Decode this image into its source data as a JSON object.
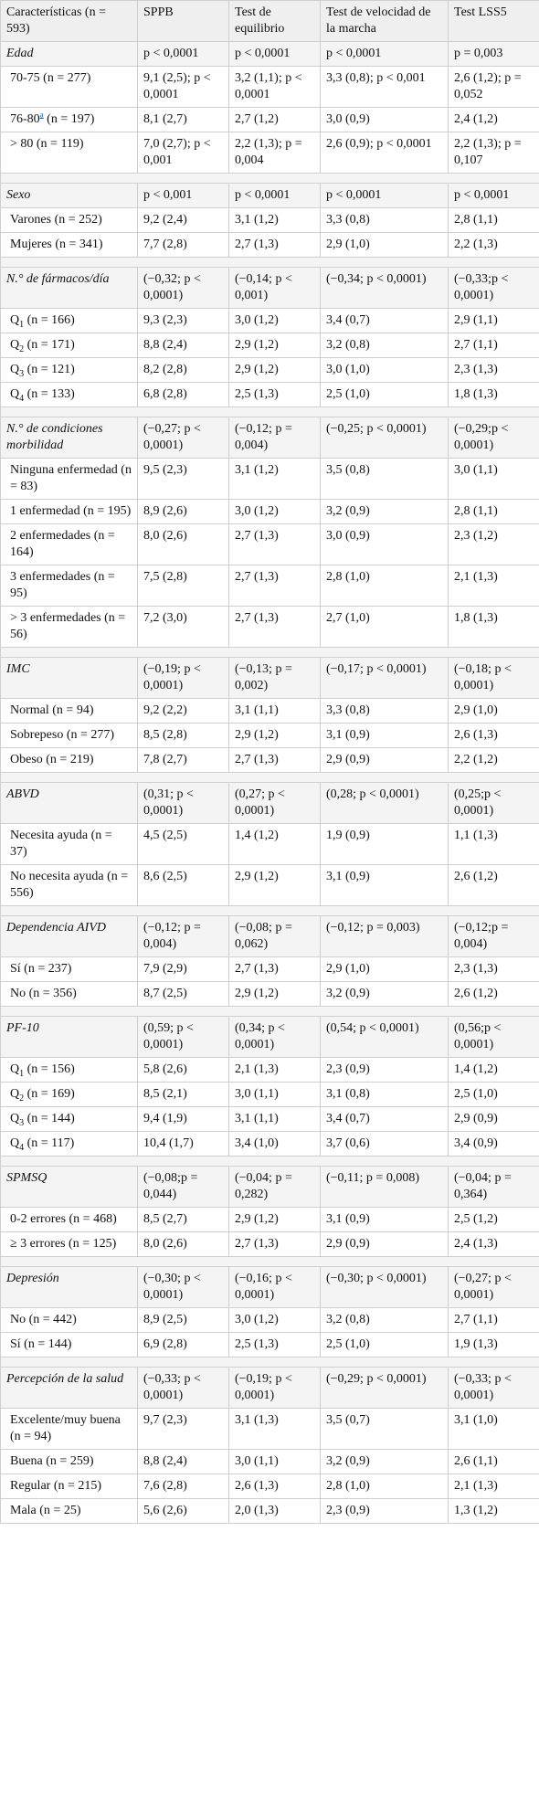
{
  "table": {
    "headers": [
      "Características (n = 593)",
      "SPPB",
      "Test de equilibrio",
      "Test de velocidad de la marcha",
      "Test LSS5"
    ],
    "groups": [
      {
        "label": "Edad",
        "values": [
          "p < 0,0001",
          "p < 0,0001",
          "p < 0,0001",
          "p = 0,003"
        ],
        "rows": [
          {
            "label": "70-75 (n = 277)",
            "values": [
              "9,1 (2,5); p < 0,0001",
              "3,2 (1,1); p < 0,0001",
              "3,3 (0,8); p < 0,001",
              "2,6 (1,2); p = 0,052"
            ]
          },
          {
            "label_pre": "76-80",
            "label_sup": "a",
            "label_post": " (n = 197)",
            "values": [
              "8,1 (2,7)",
              "2,7 (1,2)",
              "3,0 (0,9)",
              "2,4 (1,2)"
            ]
          },
          {
            "label": "> 80 (n = 119)",
            "values": [
              "7,0 (2,7); p < 0,001",
              "2,2 (1,3); p = 0,004",
              "2,6 (0,9); p < 0,0001",
              "2,2 (1,3); p = 0,107"
            ]
          }
        ]
      },
      {
        "label": "Sexo",
        "values": [
          "p < 0,001",
          "p < 0,0001",
          "p < 0,0001",
          "p < 0,0001"
        ],
        "rows": [
          {
            "label": "Varones (n = 252)",
            "values": [
              "9,2 (2,4)",
              "3,1 (1,2)",
              "3,3 (0,8)",
              "2,8 (1,1)"
            ]
          },
          {
            "label": "Mujeres (n = 341)",
            "values": [
              "7,7 (2,8)",
              "2,7 (1,3)",
              "2,9 (1,0)",
              "2,2 (1,3)"
            ]
          }
        ]
      },
      {
        "label": "N.° de fármacos/día",
        "values": [
          "(−0,32; p < 0,0001)",
          "(−0,14; p < 0,001)",
          "(−0,34; p < 0,0001)",
          "(−0,33;p < 0,0001)"
        ],
        "rows": [
          {
            "label_pre": "Q",
            "label_sub": "1",
            "label_post": " (n = 166)",
            "values": [
              "9,3 (2,3)",
              "3,0 (1,2)",
              "3,4 (0,7)",
              "2,9 (1,1)"
            ]
          },
          {
            "label_pre": "Q",
            "label_sub": "2",
            "label_post": " (n = 171)",
            "values": [
              "8,8 (2,4)",
              "2,9 (1,2)",
              "3,2 (0,8)",
              "2,7 (1,1)"
            ]
          },
          {
            "label_pre": "Q",
            "label_sub": "3",
            "label_post": " (n = 121)",
            "values": [
              "8,2 (2,8)",
              "2,9 (1,2)",
              "3,0 (1,0)",
              "2,3 (1,3)"
            ]
          },
          {
            "label_pre": "Q",
            "label_sub": "4",
            "label_post": " (n = 133)",
            "values": [
              "6,8 (2,8)",
              "2,5 (1,3)",
              "2,5 (1,0)",
              "1,8 (1,3)"
            ]
          }
        ]
      },
      {
        "label": "N.° de condiciones morbilidad",
        "values": [
          "(−0,27; p < 0,0001)",
          "(−0,12; p = 0,004)",
          "(−0,25; p < 0,0001)",
          "(−0,29;p < 0,0001)"
        ],
        "rows": [
          {
            "label": "Ninguna enfermedad (n = 83)",
            "values": [
              "9,5 (2,3)",
              "3,1 (1,2)",
              "3,5 (0,8)",
              "3,0 (1,1)"
            ]
          },
          {
            "label": "1 enfermedad (n = 195)",
            "values": [
              "8,9 (2,6)",
              "3,0 (1,2)",
              "3,2 (0,9)",
              "2,8 (1,1)"
            ]
          },
          {
            "label": "2 enfermedades (n = 164)",
            "values": [
              "8,0 (2,6)",
              "2,7 (1,3)",
              "3,0 (0,9)",
              "2,3 (1,2)"
            ]
          },
          {
            "label": "3 enfermedades (n = 95)",
            "values": [
              "7,5 (2,8)",
              "2,7 (1,3)",
              "2,8 (1,0)",
              "2,1 (1,3)"
            ]
          },
          {
            "label": "> 3 enfermedades (n = 56)",
            "values": [
              "7,2 (3,0)",
              "2,7 (1,3)",
              "2,7 (1,0)",
              "1,8 (1,3)"
            ]
          }
        ]
      },
      {
        "label": "IMC",
        "values": [
          "(−0,19; p < 0,0001)",
          "(−0,13; p = 0,002)",
          "(−0,17; p < 0,0001)",
          "(−0,18; p < 0,0001)"
        ],
        "rows": [
          {
            "label": "Normal (n = 94)",
            "values": [
              "9,2 (2,2)",
              "3,1 (1,1)",
              "3,3 (0,8)",
              "2,9 (1,0)"
            ]
          },
          {
            "label": "Sobrepeso (n = 277)",
            "values": [
              "8,5 (2,8)",
              "2,9 (1,2)",
              "3,1 (0,9)",
              "2,6 (1,3)"
            ]
          },
          {
            "label": "Obeso (n = 219)",
            "values": [
              "7,8 (2,7)",
              "2,7 (1,3)",
              "2,9 (0,9)",
              "2,2 (1,2)"
            ]
          }
        ]
      },
      {
        "label": "ABVD",
        "values": [
          "(0,31; p < 0,0001)",
          "(0,27; p < 0,0001)",
          "(0,28; p < 0,0001)",
          "(0,25;p < 0,0001)"
        ],
        "rows": [
          {
            "label": "Necesita ayuda (n = 37)",
            "values": [
              "4,5 (2,5)",
              "1,4 (1,2)",
              "1,9 (0,9)",
              "1,1 (1,3)"
            ]
          },
          {
            "label": "No necesita ayuda (n = 556)",
            "values": [
              "8,6 (2,5)",
              "2,9 (1,2)",
              "3,1 (0,9)",
              "2,6 (1,2)"
            ]
          }
        ]
      },
      {
        "label": "Dependencia AIVD",
        "values": [
          "(−0,12; p = 0,004)",
          "(−0,08; p = 0,062)",
          "(−0,12; p = 0,003)",
          "(−0,12;p = 0,004)"
        ],
        "rows": [
          {
            "label": "Sí (n = 237)",
            "values": [
              "7,9 (2,9)",
              "2,7 (1,3)",
              "2,9 (1,0)",
              "2,3 (1,3)"
            ]
          },
          {
            "label": "No (n = 356)",
            "values": [
              "8,7 (2,5)",
              "2,9 (1,2)",
              "3,2 (0,9)",
              "2,6 (1,2)"
            ]
          }
        ]
      },
      {
        "label": "PF-10",
        "values": [
          "(0,59; p < 0,0001)",
          "(0,34; p < 0,0001)",
          "(0,54; p < 0,0001)",
          "(0,56;p < 0,0001)"
        ],
        "rows": [
          {
            "label_pre": "Q",
            "label_sub": "1",
            "label_post": " (n = 156)",
            "values": [
              "5,8 (2,6)",
              "2,1 (1,3)",
              "2,3 (0,9)",
              "1,4 (1,2)"
            ]
          },
          {
            "label_pre": "Q",
            "label_sub": "2",
            "label_post": " (n = 169)",
            "values": [
              "8,5 (2,1)",
              "3,0 (1,1)",
              "3,1 (0,8)",
              "2,5 (1,0)"
            ]
          },
          {
            "label_pre": "Q",
            "label_sub": "3",
            "label_post": " (n = 144)",
            "values": [
              "9,4 (1,9)",
              "3,1 (1,1)",
              "3,4 (0,7)",
              "2,9 (0,9)"
            ]
          },
          {
            "label_pre": "Q",
            "label_sub": "4",
            "label_post": " (n = 117)",
            "values": [
              "10,4 (1,7)",
              "3,4 (1,0)",
              "3,7 (0,6)",
              "3,4 (0,9)"
            ]
          }
        ]
      },
      {
        "label": "SPMSQ",
        "values": [
          "(−0,08;p = 0,044)",
          "(−0,04; p = 0,282)",
          "(−0,11; p = 0,008)",
          "(−0,04; p = 0,364)"
        ],
        "rows": [
          {
            "label": "0-2 errores (n = 468)",
            "values": [
              "8,5 (2,7)",
              "2,9 (1,2)",
              "3,1 (0,9)",
              "2,5 (1,2)"
            ]
          },
          {
            "label": "≥ 3 errores (n = 125)",
            "values": [
              "8,0 (2,6)",
              "2,7 (1,3)",
              "2,9 (0,9)",
              "2,4 (1,3)"
            ]
          }
        ]
      },
      {
        "label": "Depresión",
        "values": [
          "(−0,30; p < 0,0001)",
          "(−0,16; p < 0,0001)",
          "(−0,30; p < 0,0001)",
          "(−0,27; p < 0,0001)"
        ],
        "rows": [
          {
            "label": "No (n = 442)",
            "values": [
              "8,9 (2,5)",
              "3,0 (1,2)",
              "3,2 (0,8)",
              "2,7 (1,1)"
            ]
          },
          {
            "label": "Sí (n = 144)",
            "values": [
              "6,9 (2,8)",
              "2,5 (1,3)",
              "2,5 (1,0)",
              "1,9 (1,3)"
            ]
          }
        ]
      },
      {
        "label": "Percepción de la salud",
        "values": [
          "(−0,33; p < 0,0001)",
          "(−0,19; p < 0,0001)",
          "(−0,29; p < 0,0001)",
          "(−0,33; p < 0,0001)"
        ],
        "rows": [
          {
            "label": "Excelente/muy buena (n = 94)",
            "values": [
              "9,7 (2,3)",
              "3,1 (1,3)",
              "3,5 (0,7)",
              "3,1 (1,0)"
            ]
          },
          {
            "label": "Buena (n = 259)",
            "values": [
              "8,8 (2,4)",
              "3,0 (1,1)",
              "3,2 (0,9)",
              "2,6 (1,1)"
            ]
          },
          {
            "label": "Regular (n = 215)",
            "values": [
              "7,6 (2,8)",
              "2,6 (1,3)",
              "2,8 (1,0)",
              "2,1 (1,3)"
            ]
          },
          {
            "label": "Mala (n = 25)",
            "values": [
              "5,6 (2,6)",
              "2,0 (1,3)",
              "2,3 (0,9)",
              "1,3 (1,2)"
            ]
          }
        ]
      }
    ]
  }
}
